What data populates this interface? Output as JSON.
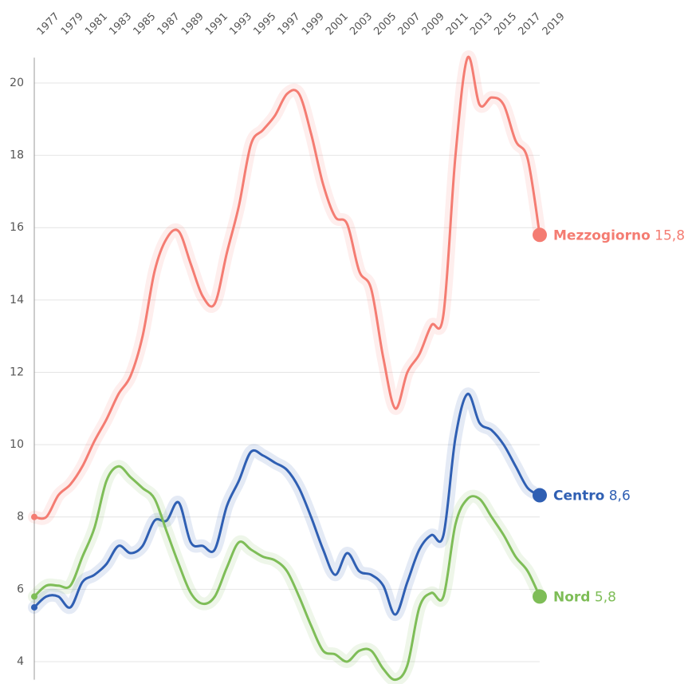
{
  "chart_data": {
    "type": "line",
    "xlim": [
      1977,
      2019
    ],
    "xticks": [
      1977,
      1979,
      1981,
      1983,
      1985,
      1987,
      1989,
      1991,
      1993,
      1995,
      1997,
      1999,
      2001,
      2003,
      2005,
      2007,
      2009,
      2011,
      2013,
      2015,
      2017,
      2019
    ],
    "ylim": [
      3.5,
      20.7
    ],
    "yticks": [
      4,
      6,
      8,
      10,
      12,
      14,
      16,
      18,
      20
    ],
    "grid": true,
    "x": [
      1977,
      1978,
      1979,
      1980,
      1981,
      1982,
      1983,
      1984,
      1985,
      1986,
      1987,
      1988,
      1989,
      1990,
      1991,
      1992,
      1993,
      1994,
      1995,
      1996,
      1997,
      1998,
      1999,
      2000,
      2001,
      2002,
      2003,
      2004,
      2005,
      2006,
      2007,
      2008,
      2009,
      2010,
      2011,
      2012,
      2013,
      2014,
      2015,
      2016,
      2017,
      2018,
      2019
    ],
    "series": [
      {
        "name": "Mezzogiorno",
        "color": "#f47c72",
        "end_label": "15,8",
        "values": [
          8.0,
          8.0,
          8.6,
          8.9,
          9.4,
          10.1,
          10.7,
          11.4,
          11.9,
          13.0,
          14.8,
          15.7,
          15.9,
          15.0,
          14.1,
          13.9,
          15.3,
          16.6,
          18.3,
          18.7,
          19.1,
          19.7,
          19.7,
          18.6,
          17.2,
          16.3,
          16.1,
          14.8,
          14.3,
          12.4,
          11.0,
          12.0,
          12.5,
          13.3,
          13.6,
          18.0,
          20.7,
          19.4,
          19.6,
          19.4,
          18.4,
          17.9,
          15.8
        ]
      },
      {
        "name": "Centro",
        "color": "#2f5fb3",
        "end_label": "8,6",
        "values": [
          5.5,
          5.8,
          5.8,
          5.5,
          6.2,
          6.4,
          6.7,
          7.2,
          7.0,
          7.2,
          7.9,
          7.9,
          8.4,
          7.3,
          7.2,
          7.1,
          8.3,
          9.0,
          9.8,
          9.7,
          9.5,
          9.3,
          8.8,
          8.0,
          7.1,
          6.4,
          7.0,
          6.5,
          6.4,
          6.1,
          5.3,
          6.2,
          7.1,
          7.5,
          7.5,
          10.2,
          11.4,
          10.6,
          10.4,
          10.0,
          9.4,
          8.8,
          8.6
        ]
      },
      {
        "name": "Nord",
        "color": "#7ebd57",
        "end_label": "5,8",
        "values": [
          5.8,
          6.1,
          6.1,
          6.1,
          6.9,
          7.7,
          9.0,
          9.4,
          9.1,
          8.8,
          8.5,
          7.6,
          6.7,
          5.9,
          5.6,
          5.8,
          6.6,
          7.3,
          7.1,
          6.9,
          6.8,
          6.5,
          5.8,
          5.0,
          4.3,
          4.2,
          4.0,
          4.3,
          4.3,
          3.8,
          3.5,
          3.9,
          5.5,
          5.9,
          5.8,
          7.8,
          8.5,
          8.5,
          8.0,
          7.5,
          6.9,
          6.5,
          5.8
        ]
      }
    ]
  }
}
